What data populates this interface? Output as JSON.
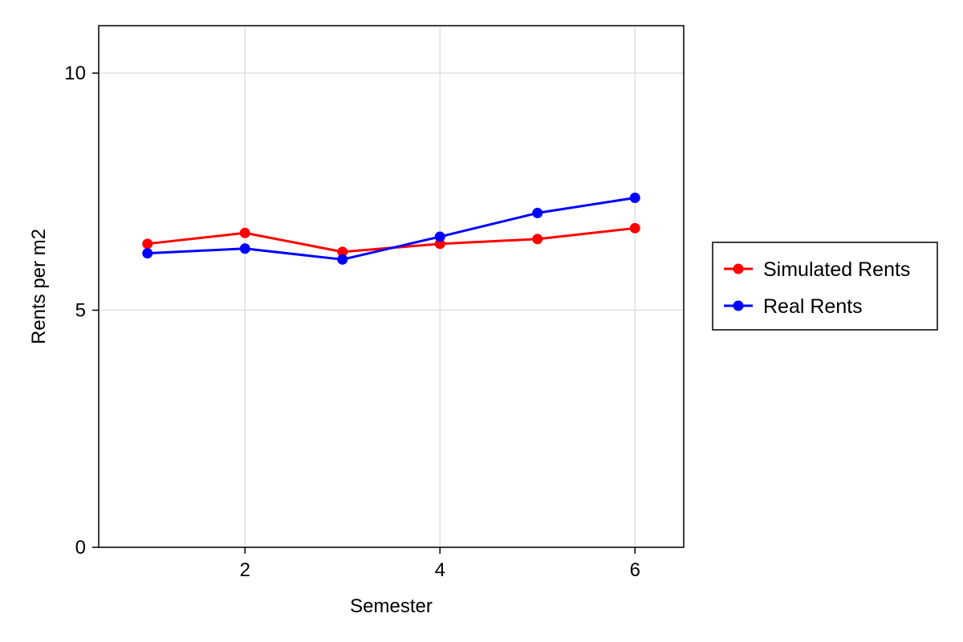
{
  "chart_data": {
    "type": "line",
    "title": "",
    "xlabel": "Semester",
    "ylabel": "Rents per m2",
    "xlim": [
      0.5,
      6.5
    ],
    "ylim": [
      0,
      11
    ],
    "xticks": [
      2,
      4,
      6
    ],
    "xtick_labels": [
      "2",
      "4",
      "6"
    ],
    "yticks": [
      0,
      5,
      10
    ],
    "ytick_labels": [
      "0",
      "5",
      "10"
    ],
    "grid": true,
    "legend_position": "right",
    "series": [
      {
        "name": "Simulated Rents",
        "color": "#ff0000",
        "x": [
          1,
          2,
          3,
          4,
          5,
          6
        ],
        "y": [
          6.4,
          6.63,
          6.23,
          6.4,
          6.5,
          6.73
        ]
      },
      {
        "name": "Real Rents",
        "color": "#0000ff",
        "x": [
          1,
          2,
          3,
          4,
          5,
          6
        ],
        "y": [
          6.2,
          6.3,
          6.07,
          6.55,
          7.05,
          7.37
        ]
      }
    ]
  }
}
